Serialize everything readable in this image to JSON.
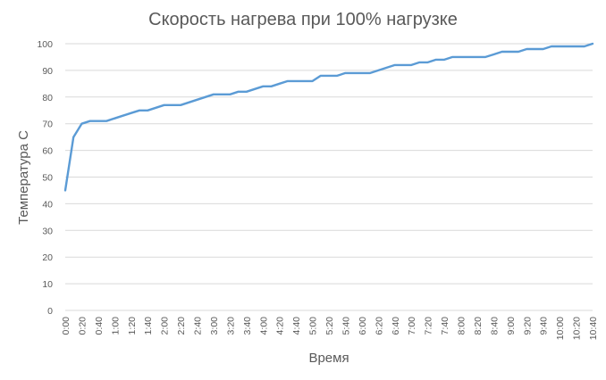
{
  "chart_data": {
    "type": "line",
    "title": "Скорость нагрева при 100% нагрузке",
    "xlabel": "Время",
    "ylabel": "Температура С",
    "ylim": [
      0,
      100
    ],
    "y_ticks": [
      0,
      10,
      20,
      30,
      40,
      50,
      60,
      70,
      80,
      90,
      100
    ],
    "x_tick_labels": [
      "0:00",
      "0:20",
      "0:40",
      "1:00",
      "1:20",
      "1:40",
      "2:00",
      "2:20",
      "2:40",
      "3:00",
      "3:20",
      "3:40",
      "4:00",
      "4:20",
      "4:40",
      "5:00",
      "5:20",
      "5:40",
      "6:00",
      "6:20",
      "6:40",
      "7:00",
      "7:20",
      "7:40",
      "8:00",
      "8:20",
      "8:40",
      "9:00",
      "9:20",
      "9:40",
      "10:00",
      "10:20",
      "10:40"
    ],
    "grid": "horizontal",
    "legend": "none",
    "series": [
      {
        "color": "#5b9bd5",
        "x": [
          "0:00",
          "0:10",
          "0:20",
          "0:30",
          "0:40",
          "0:50",
          "1:00",
          "1:10",
          "1:20",
          "1:30",
          "1:40",
          "1:50",
          "2:00",
          "2:10",
          "2:20",
          "2:30",
          "2:40",
          "2:50",
          "3:00",
          "3:10",
          "3:20",
          "3:30",
          "3:40",
          "3:50",
          "4:00",
          "4:10",
          "4:20",
          "4:30",
          "4:40",
          "4:50",
          "5:00",
          "5:10",
          "5:20",
          "5:30",
          "5:40",
          "5:50",
          "6:00",
          "6:10",
          "6:20",
          "6:30",
          "6:40",
          "6:50",
          "7:00",
          "7:10",
          "7:20",
          "7:30",
          "7:40",
          "7:50",
          "8:00",
          "8:10",
          "8:20",
          "8:30",
          "8:40",
          "8:50",
          "9:00",
          "9:10",
          "9:20",
          "9:30",
          "9:40",
          "9:50",
          "10:00",
          "10:10",
          "10:20",
          "10:30",
          "10:40"
        ],
        "values": [
          45,
          65,
          70,
          71,
          71,
          71,
          72,
          73,
          74,
          75,
          75,
          76,
          77,
          77,
          77,
          78,
          79,
          80,
          81,
          81,
          81,
          82,
          82,
          83,
          84,
          84,
          85,
          86,
          86,
          86,
          86,
          88,
          88,
          88,
          89,
          89,
          89,
          89,
          90,
          91,
          92,
          92,
          92,
          93,
          93,
          94,
          94,
          95,
          95,
          95,
          95,
          95,
          96,
          97,
          97,
          97,
          98,
          98,
          98,
          99,
          99,
          99,
          99,
          99,
          100
        ]
      }
    ]
  }
}
